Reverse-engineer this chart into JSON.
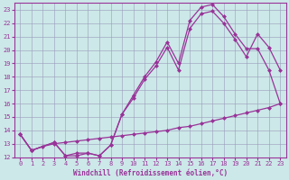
{
  "xlabel": "Windchill (Refroidissement éolien,°C)",
  "bg_color": "#cce8e8",
  "grid_color": "#9999bb",
  "line_color": "#993399",
  "xlim": [
    -0.5,
    23.5
  ],
  "ylim": [
    12,
    23.5
  ],
  "yticks": [
    12,
    13,
    14,
    15,
    16,
    17,
    18,
    19,
    20,
    21,
    22,
    23
  ],
  "xticks": [
    0,
    1,
    2,
    3,
    4,
    5,
    6,
    7,
    8,
    9,
    10,
    11,
    12,
    13,
    14,
    15,
    16,
    17,
    18,
    19,
    20,
    21,
    22,
    23
  ],
  "line1_x": [
    0,
    1,
    3,
    4,
    5,
    6,
    7,
    8,
    9,
    10,
    11,
    12,
    13,
    14,
    15,
    16,
    17,
    18,
    19,
    20,
    21,
    22,
    23
  ],
  "line1_y": [
    13.7,
    12.5,
    13.1,
    12.1,
    12.1,
    12.3,
    12.1,
    12.9,
    15.2,
    16.6,
    18.0,
    19.1,
    20.6,
    19.0,
    22.2,
    23.2,
    23.4,
    22.5,
    21.2,
    20.1,
    20.1,
    18.5,
    16.0
  ],
  "line2_x": [
    0,
    1,
    3,
    4,
    5,
    6,
    7,
    8,
    9,
    10,
    11,
    12,
    13,
    14,
    15,
    16,
    17,
    18,
    19,
    20,
    21,
    22,
    23
  ],
  "line2_y": [
    13.7,
    12.5,
    13.1,
    12.1,
    12.3,
    12.3,
    12.1,
    12.9,
    15.2,
    16.4,
    17.8,
    18.8,
    20.2,
    18.5,
    21.6,
    22.7,
    22.9,
    22.0,
    20.8,
    19.5,
    21.2,
    20.2,
    18.5
  ],
  "line3_x": [
    0,
    1,
    2,
    3,
    4,
    5,
    6,
    7,
    8,
    9,
    10,
    11,
    12,
    13,
    14,
    15,
    16,
    17,
    18,
    19,
    20,
    21,
    22,
    23
  ],
  "line3_y": [
    13.7,
    12.5,
    12.8,
    13.0,
    13.1,
    13.2,
    13.3,
    13.4,
    13.5,
    13.6,
    13.7,
    13.8,
    13.9,
    14.0,
    14.2,
    14.3,
    14.5,
    14.7,
    14.9,
    15.1,
    15.3,
    15.5,
    15.7,
    16.0
  ],
  "marker_size": 2.5,
  "line_width": 0.9
}
